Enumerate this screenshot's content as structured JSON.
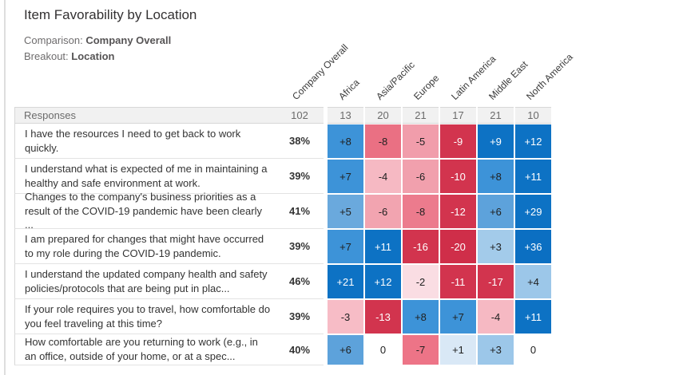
{
  "page": {
    "title": "Item Favorability by Location",
    "comparison_label": "Comparison:",
    "comparison_value": "Company Overall",
    "breakout_label": "Breakout:",
    "breakout_value": "Location"
  },
  "chart_data": {
    "type": "heatmap",
    "title": "Item Favorability by Location",
    "comparison": "Company Overall",
    "breakout": "Location",
    "columns": [
      "Company Overall",
      "Africa",
      "Asia/Pacific",
      "Europe",
      "Latin America",
      "Middle East",
      "North America"
    ],
    "responses_label": "Responses",
    "responses": [
      "102",
      "13",
      "20",
      "21",
      "17",
      "21",
      "10"
    ],
    "palette": {
      "strong_blue": "#0d72c4",
      "medium_blue": "#3d93d8",
      "light_blue": "#9cc7e9",
      "pale_blue": "#d9e8f6",
      "neutral": "#ffffff",
      "pale_pink": "#fadde3",
      "light_pink": "#f6b9c3",
      "medium_pink": "#ea7083",
      "strong_red": "#d2344e",
      "dark_text": "#212121",
      "light_text": "#ffffff"
    },
    "rows": [
      {
        "question": "I have the resources I need to get back to work quickly.",
        "favorability": "38%",
        "cells": [
          {
            "v": "+8",
            "bg": "#3d93d8",
            "fg": "#212121"
          },
          {
            "v": "-8",
            "bg": "#ea7083",
            "fg": "#212121"
          },
          {
            "v": "-5",
            "bg": "#f19dab",
            "fg": "#212121"
          },
          {
            "v": "-9",
            "bg": "#d2344e",
            "fg": "#ffffff"
          },
          {
            "v": "+9",
            "bg": "#0d72c4",
            "fg": "#ffffff"
          },
          {
            "v": "+12",
            "bg": "#0d72c4",
            "fg": "#ffffff"
          }
        ]
      },
      {
        "question": "I understand what is expected of me in maintaining a healthy and safe environment at work.",
        "favorability": "39%",
        "cells": [
          {
            "v": "+7",
            "bg": "#3d93d8",
            "fg": "#212121"
          },
          {
            "v": "-4",
            "bg": "#f6b9c3",
            "fg": "#212121"
          },
          {
            "v": "-6",
            "bg": "#f1a0ad",
            "fg": "#212121"
          },
          {
            "v": "-10",
            "bg": "#d2344e",
            "fg": "#ffffff"
          },
          {
            "v": "+8",
            "bg": "#3d93d8",
            "fg": "#212121"
          },
          {
            "v": "+11",
            "bg": "#0d72c4",
            "fg": "#ffffff"
          }
        ]
      },
      {
        "question": "Changes to the company's business priorities as a result of the COVID-19 pandemic have been clearly ...",
        "favorability": "41%",
        "cells": [
          {
            "v": "+5",
            "bg": "#6aa9dd",
            "fg": "#212121"
          },
          {
            "v": "-6",
            "bg": "#f2a4b0",
            "fg": "#212121"
          },
          {
            "v": "-8",
            "bg": "#ec7b8d",
            "fg": "#212121"
          },
          {
            "v": "-12",
            "bg": "#d2344e",
            "fg": "#ffffff"
          },
          {
            "v": "+6",
            "bg": "#5da2db",
            "fg": "#212121"
          },
          {
            "v": "+29",
            "bg": "#0d72c4",
            "fg": "#ffffff"
          }
        ]
      },
      {
        "question": "I am prepared for changes that might have occurred to my role during the COVID-19 pandemic.",
        "favorability": "39%",
        "cells": [
          {
            "v": "+7",
            "bg": "#3d93d8",
            "fg": "#212121"
          },
          {
            "v": "+11",
            "bg": "#0d72c4",
            "fg": "#ffffff"
          },
          {
            "v": "-16",
            "bg": "#d2344e",
            "fg": "#ffffff"
          },
          {
            "v": "-20",
            "bg": "#cf2e49",
            "fg": "#ffffff"
          },
          {
            "v": "+3",
            "bg": "#a3cbea",
            "fg": "#212121"
          },
          {
            "v": "+36",
            "bg": "#0b6fc2",
            "fg": "#ffffff"
          }
        ]
      },
      {
        "question": "I understand the updated company health and safety policies/protocols that are being put in plac...",
        "favorability": "46%",
        "cells": [
          {
            "v": "+21",
            "bg": "#0d72c4",
            "fg": "#ffffff"
          },
          {
            "v": "+12",
            "bg": "#0d72c4",
            "fg": "#ffffff"
          },
          {
            "v": "-2",
            "bg": "#fadde3",
            "fg": "#212121"
          },
          {
            "v": "-11",
            "bg": "#d2344e",
            "fg": "#ffffff"
          },
          {
            "v": "-17",
            "bg": "#d2344e",
            "fg": "#ffffff"
          },
          {
            "v": "+4",
            "bg": "#9cc7e9",
            "fg": "#212121"
          }
        ]
      },
      {
        "question": "If your role requires you to travel, how comfortable do you feel traveling at this time?",
        "favorability": "39%",
        "cells": [
          {
            "v": "-3",
            "bg": "#f7bcc6",
            "fg": "#212121"
          },
          {
            "v": "-13",
            "bg": "#d2344e",
            "fg": "#ffffff"
          },
          {
            "v": "+8",
            "bg": "#3d93d8",
            "fg": "#212121"
          },
          {
            "v": "+7",
            "bg": "#3d93d8",
            "fg": "#212121"
          },
          {
            "v": "-4",
            "bg": "#f6b9c3",
            "fg": "#212121"
          },
          {
            "v": "+11",
            "bg": "#0d72c4",
            "fg": "#ffffff"
          }
        ]
      },
      {
        "question": "How comfortable are you returning to work (e.g., in an office, outside of your home, or at a spec...",
        "favorability": "40%",
        "cells": [
          {
            "v": "+6",
            "bg": "#5da2db",
            "fg": "#212121"
          },
          {
            "v": "0",
            "bg": "#ffffff",
            "fg": "#212121"
          },
          {
            "v": "-7",
            "bg": "#ed7487",
            "fg": "#212121"
          },
          {
            "v": "+1",
            "bg": "#d9e8f6",
            "fg": "#212121"
          },
          {
            "v": "+3",
            "bg": "#9cc7e9",
            "fg": "#212121"
          },
          {
            "v": "0",
            "bg": "#ffffff",
            "fg": "#212121"
          }
        ]
      }
    ]
  }
}
